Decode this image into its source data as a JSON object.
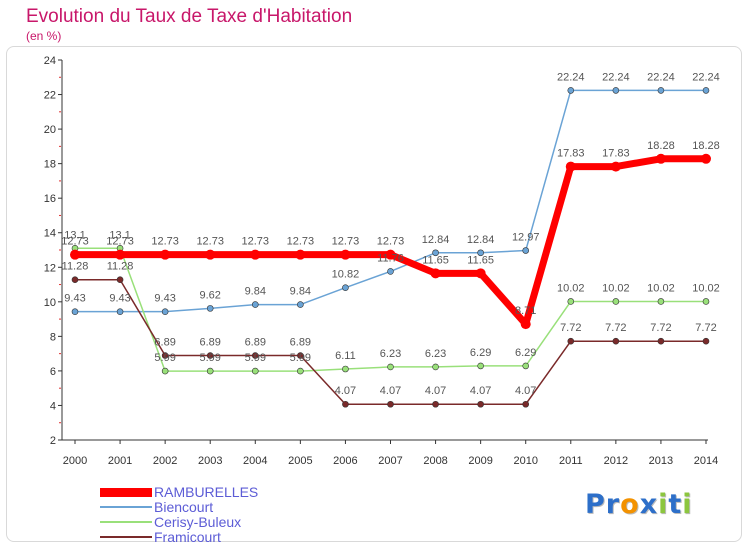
{
  "header": {
    "title": "Evolution du Taux de Taxe d'Habitation",
    "subtitle": "(en %)"
  },
  "logo": {
    "text": "Proxiti",
    "letters": [
      "P",
      "r",
      "o",
      "x",
      "i",
      "t",
      "i"
    ],
    "colors": [
      "#2d6fc9",
      "#2d6fc9",
      "#f39200",
      "#2d6fc9",
      "#8cc63f",
      "#2d6fc9",
      "#8cc63f"
    ]
  },
  "chart_data": {
    "type": "line",
    "title": "Evolution du Taux de Taxe d'Habitation",
    "ylabel": "(en %)",
    "xlabel": "",
    "x": [
      "2000",
      "2001",
      "2002",
      "2003",
      "2004",
      "2005",
      "2006",
      "2007",
      "2008",
      "2009",
      "2010",
      "2011",
      "2012",
      "2013",
      "2014"
    ],
    "ylim": [
      2,
      24
    ],
    "yticks": [
      2,
      4,
      6,
      8,
      10,
      12,
      14,
      16,
      18,
      20,
      22,
      24
    ],
    "grid": false,
    "legend": "bottom-left",
    "series": [
      {
        "name": "RAMBURELLES",
        "color": "#ff0000",
        "width": 7,
        "values": [
          12.73,
          12.73,
          12.73,
          12.73,
          12.73,
          12.73,
          12.73,
          12.73,
          11.65,
          11.65,
          8.71,
          17.83,
          17.83,
          18.28,
          18.28
        ],
        "labels": [
          "12.73",
          "12.73",
          "12.73",
          "12.73",
          "12.73",
          "12.73",
          "12.73",
          "12.73",
          "11.65",
          "11.65",
          "8.71",
          "17.83",
          "17.83",
          "18.28",
          "18.28"
        ]
      },
      {
        "name": "Biencourt",
        "color": "#6aa3d5",
        "width": 1.5,
        "values": [
          9.43,
          9.43,
          9.43,
          9.62,
          9.84,
          9.84,
          10.82,
          11.76,
          12.84,
          12.84,
          12.97,
          22.24,
          22.24,
          22.24,
          22.24
        ],
        "labels": [
          "9.43",
          "9.43",
          "9.43",
          "9.62",
          "9.84",
          "9.84",
          "10.82",
          "11.76",
          "12.84",
          "12.84",
          "12.97",
          "22.24",
          "22.24",
          "22.24",
          "22.24"
        ]
      },
      {
        "name": "Cerisy-Buleux",
        "color": "#99e07a",
        "width": 1.5,
        "values": [
          13.1,
          13.1,
          5.99,
          5.99,
          5.99,
          5.99,
          6.11,
          6.23,
          6.23,
          6.29,
          6.29,
          10.02,
          10.02,
          10.02,
          10.02
        ],
        "labels": [
          "13.1",
          "13.1",
          "5.99",
          "5.99",
          "5.99",
          "5.99",
          "6.11",
          "6.23",
          "6.23",
          "6.29",
          "6.29",
          "10.02",
          "10.02",
          "10.02",
          "10.02"
        ]
      },
      {
        "name": "Framicourt",
        "color": "#7a2a2a",
        "width": 1.5,
        "values": [
          11.28,
          11.28,
          6.89,
          6.89,
          6.89,
          6.89,
          4.07,
          4.07,
          4.07,
          4.07,
          4.07,
          7.72,
          7.72,
          7.72,
          7.72
        ],
        "labels": [
          "11.28",
          "11.28",
          "6.89",
          "6.89",
          "6.89",
          "6.89",
          "4.07",
          "4.07",
          "4.07",
          "4.07",
          "4.07",
          "7.72",
          "7.72",
          "7.72",
          "7.72"
        ]
      }
    ]
  }
}
